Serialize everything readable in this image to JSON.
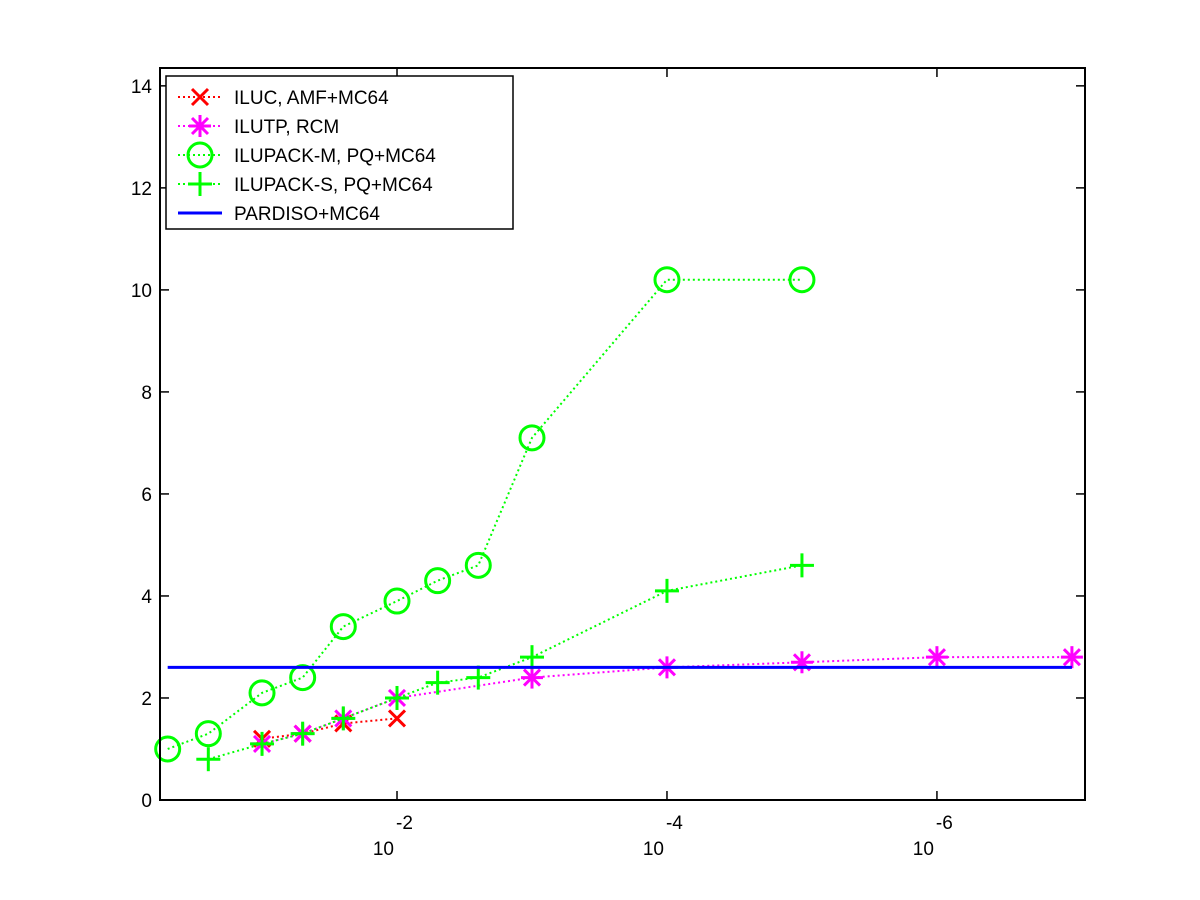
{
  "chart_data": {
    "type": "line",
    "xscale": "log",
    "xreversed": true,
    "xlim": [
      0.57,
      8e-08
    ],
    "ylim": [
      0,
      14.35
    ],
    "xticks": [
      {
        "value": 0.01,
        "label": "10",
        "exponent": "-2"
      },
      {
        "value": 0.0001,
        "label": "10",
        "exponent": "-4"
      },
      {
        "value": 1e-06,
        "label": "10",
        "exponent": "-6"
      }
    ],
    "yticks": [
      0,
      2,
      4,
      6,
      8,
      10,
      12,
      14
    ],
    "legend": "upper left",
    "series": [
      {
        "name": "ILUC, AMF+MC64",
        "color": "#ff0000",
        "marker": "x",
        "linestyle": "dotted",
        "x": [
          0.1,
          0.05,
          0.025,
          0.01
        ],
        "values": [
          1.2,
          1.3,
          1.5,
          1.6
        ]
      },
      {
        "name": "ILUTP, RCM",
        "color": "#ff00ff",
        "marker": "star",
        "linestyle": "dotted",
        "x": [
          0.1,
          0.05,
          0.025,
          0.01,
          0.001,
          0.0001,
          1e-05,
          1e-06,
          1e-07
        ],
        "values": [
          1.1,
          1.3,
          1.6,
          2.0,
          2.4,
          2.6,
          2.7,
          2.8,
          2.8
        ]
      },
      {
        "name": "ILUPACK-M, PQ+MC64",
        "color": "#00ff00",
        "marker": "circle",
        "linestyle": "dotted",
        "x": [
          0.5,
          0.25,
          0.1,
          0.05,
          0.025,
          0.01,
          0.005,
          0.0025,
          0.001,
          0.0001,
          1e-05
        ],
        "values": [
          1.0,
          1.3,
          2.1,
          2.4,
          3.4,
          3.9,
          4.3,
          4.6,
          7.1,
          10.2,
          10.2
        ]
      },
      {
        "name": "ILUPACK-S, PQ+MC64",
        "color": "#00ff00",
        "marker": "plus",
        "linestyle": "dotted",
        "x": [
          0.25,
          0.1,
          0.05,
          0.025,
          0.01,
          0.005,
          0.0025,
          0.001,
          0.0001,
          1e-05
        ],
        "values": [
          0.8,
          1.1,
          1.3,
          1.6,
          2.0,
          2.3,
          2.4,
          2.8,
          4.1,
          4.6
        ]
      },
      {
        "name": "PARDISO+MC64",
        "color": "#0000ff",
        "marker": "none",
        "linestyle": "solid",
        "x": [
          0.5,
          1e-07
        ],
        "values": [
          2.6,
          2.6
        ]
      }
    ]
  }
}
